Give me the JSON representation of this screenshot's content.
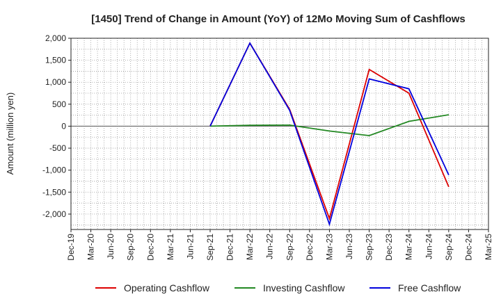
{
  "chart_data": {
    "type": "line",
    "title": "[1450]  Trend of Change in Amount (YoY) of 12Mo Moving Sum of Cashflows",
    "xlabel": "",
    "ylabel": "Amount (million yen)",
    "ylim": [
      -2350,
      2000
    ],
    "yticks": [
      2000,
      1500,
      1000,
      500,
      0,
      -500,
      -1000,
      -1500,
      -2000
    ],
    "ytick_labels": [
      "2,000",
      "1,500",
      "1,000",
      "500",
      "0",
      "-500",
      "-1,000",
      "-1,500",
      "-2,000"
    ],
    "categories": [
      "Dec-19",
      "Mar-20",
      "Jun-20",
      "Sep-20",
      "Dec-20",
      "Mar-21",
      "Jun-21",
      "Sep-21",
      "Dec-21",
      "Mar-22",
      "Jun-22",
      "Sep-22",
      "Dec-22",
      "Mar-23",
      "Jun-23",
      "Sep-23",
      "Dec-23",
      "Mar-24",
      "Jun-24",
      "Sep-24",
      "Dec-24",
      "Mar-25"
    ],
    "tick_labels": [
      "Dec-19",
      "Mar-20",
      "Jun-20",
      "Sep-20",
      "Dec-20",
      "Mar-21",
      "Jun-21",
      "Sep-21",
      "Dec-21",
      "Mar-22",
      "Jun-22",
      "Sep-22",
      "Dec-22",
      "Mar-23",
      "Jun-23",
      "Sep-23",
      "Dec-23",
      "Mar-24",
      "Jun-24",
      "Sep-24",
      "Dec-24",
      "Mar-25"
    ],
    "series": [
      {
        "name": "Operating Cashflow",
        "color": "#dd0000",
        "points": [
          [
            "Sep-21",
            0
          ],
          [
            "Mar-22",
            1890
          ],
          [
            "Sep-22",
            380
          ],
          [
            "Mar-23",
            -2100
          ],
          [
            "Sep-23",
            1290
          ],
          [
            "Mar-24",
            750
          ],
          [
            "Sep-24",
            -1380
          ]
        ]
      },
      {
        "name": "Investing Cashflow",
        "color": "#228822",
        "points": [
          [
            "Sep-21",
            0
          ],
          [
            "Mar-22",
            20
          ],
          [
            "Sep-22",
            25
          ],
          [
            "Mar-23",
            -110
          ],
          [
            "Sep-23",
            -215
          ],
          [
            "Mar-24",
            110
          ],
          [
            "Sep-24",
            260
          ]
        ]
      },
      {
        "name": "Free Cashflow",
        "color": "#0000dd",
        "points": [
          [
            "Sep-21",
            0
          ],
          [
            "Mar-22",
            1890
          ],
          [
            "Sep-22",
            360
          ],
          [
            "Mar-23",
            -2230
          ],
          [
            "Sep-23",
            1075
          ],
          [
            "Mar-24",
            850
          ],
          [
            "Sep-24",
            -1110
          ]
        ]
      }
    ],
    "legend_position": "bottom",
    "grid": true
  }
}
